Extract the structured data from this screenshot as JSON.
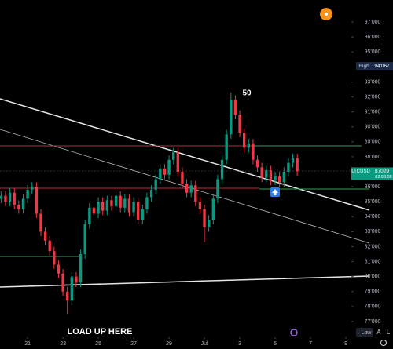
{
  "chart_data": {
    "type": "candlestick",
    "x": [
      19.5,
      19.75,
      20,
      20.25,
      20.5,
      20.75,
      21,
      21.25,
      21.5,
      21.75,
      22,
      22.25,
      22.5,
      22.75,
      23,
      23.25,
      23.5,
      23.75,
      24,
      24.25,
      24.5,
      24.75,
      25,
      25.25,
      25.5,
      25.75,
      26,
      26.25,
      26.5,
      26.75,
      27,
      27.25,
      27.5,
      27.75,
      28,
      28.25,
      28.5,
      28.75,
      29,
      29.25,
      29.5,
      29.75,
      30,
      30.25,
      30.5,
      30.75,
      31,
      31.25,
      31.5,
      31.75,
      32,
      32.25,
      32.5,
      32.75,
      33,
      33.25,
      33.5,
      33.75,
      34,
      34.25,
      34.5,
      34.75,
      35,
      35.25,
      35.5,
      35.75,
      36,
      36.25
    ],
    "open": [
      85200,
      85400,
      85000,
      85600,
      84800,
      84500,
      85200,
      85800,
      86000,
      84200,
      83000,
      82400,
      81700,
      80800,
      80200,
      79000,
      78400,
      80000,
      79600,
      81500,
      83500,
      84600,
      84200,
      85000,
      84400,
      85100,
      84700,
      85400,
      84600,
      85200,
      84300,
      85000,
      83800,
      84500,
      85300,
      85800,
      86500,
      87200,
      86800,
      87800,
      88300,
      87000,
      86200,
      85600,
      86100,
      85000,
      84500,
      83300,
      83800,
      85200,
      86500,
      87800,
      89500,
      91800,
      90800,
      89600,
      88600,
      88900,
      87800,
      87300,
      86600,
      87100,
      86400,
      86700,
      86300,
      87000,
      87600,
      87900
    ],
    "high": [
      85700,
      85700,
      85900,
      85900,
      85100,
      85500,
      86100,
      86300,
      86300,
      84500,
      83300,
      82700,
      82000,
      81100,
      80500,
      79300,
      80300,
      80300,
      81800,
      83800,
      84900,
      84900,
      85300,
      85300,
      85400,
      85400,
      85700,
      85700,
      85500,
      85500,
      85300,
      85300,
      84800,
      85600,
      86100,
      86800,
      87500,
      87500,
      88100,
      88600,
      88600,
      87300,
      86500,
      86400,
      86400,
      85300,
      84800,
      84100,
      85500,
      86800,
      88100,
      89800,
      92300,
      92100,
      91100,
      89900,
      89200,
      89200,
      88100,
      87600,
      87400,
      87400,
      87000,
      87000,
      87300,
      87900,
      88200,
      88200
    ],
    "low": [
      84900,
      84700,
      84700,
      84500,
      84200,
      84200,
      84900,
      85500,
      83900,
      82700,
      82100,
      81400,
      80500,
      79900,
      78700,
      77500,
      78100,
      79300,
      79300,
      81200,
      83200,
      83900,
      83900,
      84100,
      84100,
      84400,
      84400,
      84300,
      84300,
      84000,
      84000,
      83500,
      83500,
      84200,
      85000,
      85500,
      86200,
      86500,
      86500,
      87500,
      86700,
      85900,
      85300,
      85300,
      84700,
      84200,
      82300,
      83000,
      83500,
      84900,
      86200,
      87500,
      89200,
      90500,
      89300,
      88300,
      88300,
      87500,
      87000,
      86300,
      86300,
      86100,
      86100,
      86000,
      86000,
      86700,
      87300,
      86729
    ],
    "close": [
      85400,
      85000,
      85600,
      84800,
      84500,
      85200,
      85800,
      86000,
      84200,
      83000,
      82400,
      81700,
      80800,
      80200,
      79000,
      78400,
      80000,
      79600,
      81500,
      83500,
      84600,
      84200,
      85000,
      84400,
      85100,
      84700,
      85400,
      84600,
      85200,
      84300,
      85000,
      83800,
      84500,
      85300,
      85800,
      86500,
      87200,
      86800,
      87800,
      88300,
      87000,
      86200,
      85600,
      86100,
      85000,
      84500,
      83300,
      83800,
      85200,
      86500,
      87800,
      89500,
      91800,
      90800,
      89600,
      88600,
      88900,
      87800,
      87300,
      86600,
      87100,
      86400,
      86700,
      86300,
      87000,
      87600,
      87900,
      87029
    ],
    "up_color": "#089981",
    "down_color": "#f23645",
    "xlim": [
      19.44,
      39.31
    ],
    "ylim": [
      75950,
      98470
    ],
    "xticks": [
      21,
      23,
      25,
      27,
      29,
      {
        "value": 31,
        "label": "Jul"
      },
      {
        "value": 33,
        "label": "3"
      },
      {
        "value": 35,
        "label": "5"
      },
      {
        "value": 37,
        "label": "7"
      },
      {
        "value": 39,
        "label": "9"
      }
    ],
    "yticks": [
      {
        "value": 97000,
        "label": "97'000"
      },
      {
        "value": 96000,
        "label": "96'000"
      },
      {
        "value": 95000,
        "label": "95'000"
      },
      {
        "value": 93000,
        "label": "93'000"
      },
      {
        "value": 92000,
        "label": "92'000"
      },
      {
        "value": 91000,
        "label": "91'000"
      },
      {
        "value": 90000,
        "label": "90'000"
      },
      {
        "value": 89000,
        "label": "89'000"
      },
      {
        "value": 88000,
        "label": "88'000"
      },
      {
        "value": 86000,
        "label": "86'000"
      },
      {
        "value": 85000,
        "label": "85'000"
      },
      {
        "value": 84000,
        "label": "84'000"
      },
      {
        "value": 83000,
        "label": "83'000"
      },
      {
        "value": 82000,
        "label": "82'000"
      },
      {
        "value": 81000,
        "label": "81'000"
      },
      {
        "value": 80000,
        "label": "80'000"
      },
      {
        "value": 79000,
        "label": "79'000"
      },
      {
        "value": 78000,
        "label": "78'000"
      },
      {
        "value": 77000,
        "label": "77'000"
      }
    ],
    "annotations": {
      "peak": "50",
      "buy": "LOAD UP HERE"
    },
    "high_marker": {
      "label": "High",
      "value": 94067,
      "value_label": "94'067"
    },
    "price_marker": {
      "symbol": "LTCUSD",
      "value": 87029,
      "countdown": "02:03:36"
    }
  },
  "controls": {
    "low": "Low",
    "auto": "A",
    "log": "L"
  }
}
